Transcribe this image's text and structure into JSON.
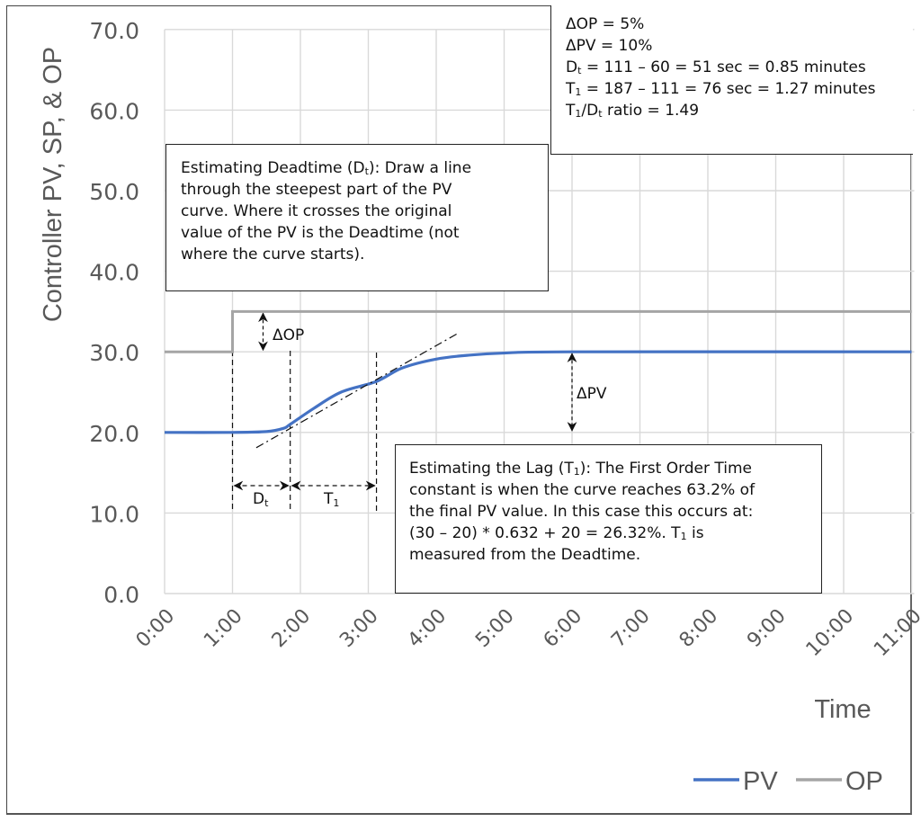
{
  "chart_data": {
    "type": "line",
    "title": "",
    "xlabel": "Time",
    "ylabel": "Controller PV, SP, & OP",
    "ylim": [
      0,
      70
    ],
    "yticks": [
      "0.0",
      "10.0",
      "20.0",
      "30.0",
      "40.0",
      "50.0",
      "60.0",
      "70.0"
    ],
    "xticks": [
      "0:00",
      "1:00",
      "2:00",
      "3:00",
      "4:00",
      "5:00",
      "6:00",
      "7:00",
      "8:00",
      "9:00",
      "10:00",
      "11:00"
    ],
    "xlim_minutes": [
      0,
      11
    ],
    "grid": true,
    "legend_position": "bottom-right",
    "series": [
      {
        "name": "PV",
        "color": "#4472C4",
        "points_minutes": [
          [
            0,
            20
          ],
          [
            1,
            20
          ],
          [
            1.5,
            20.1
          ],
          [
            1.75,
            20.5
          ],
          [
            1.85,
            21
          ],
          [
            2.2,
            23
          ],
          [
            2.6,
            25
          ],
          [
            3.12,
            26.32
          ],
          [
            3.5,
            28
          ],
          [
            4,
            29.1
          ],
          [
            4.5,
            29.6
          ],
          [
            5,
            29.85
          ],
          [
            6,
            30
          ],
          [
            11,
            30
          ]
        ]
      },
      {
        "name": "OP",
        "color": "#A5A5A5",
        "points_minutes": [
          [
            0,
            30
          ],
          [
            1,
            30
          ],
          [
            1,
            35
          ],
          [
            11,
            35
          ]
        ]
      }
    ],
    "annotations": [
      {
        "label": "ΔOP",
        "x_minutes": 1.45,
        "from": 30,
        "to": 35
      },
      {
        "label": "ΔPV",
        "x_minutes": 6,
        "from": 20,
        "to": 30
      },
      {
        "label": "Dt",
        "from_minutes": 1.0,
        "to_minutes": 1.85
      },
      {
        "label": "T1",
        "from_minutes": 1.85,
        "to_minutes": 3.12
      },
      {
        "label": "tangent line",
        "from": [
          1.35,
          18.1
        ],
        "to": [
          4.3,
          32.2
        ]
      }
    ]
  },
  "legend": {
    "pv": "PV",
    "op": "OP"
  },
  "labels": {
    "delta_op": "ΔOP",
    "delta_pv": "ΔPV",
    "dt_main": "D",
    "dt_sub": "t",
    "t1_main": "T",
    "t1_sub": "1"
  },
  "summary_box": {
    "line1": "ΔOP = 5%",
    "line2": "ΔPV = 10%",
    "line3_pre": "D",
    "line3_sub": "t",
    "line3_post": " = 111 – 60 = 51 sec = 0.85 minutes",
    "line4_pre": "T",
    "line4_sub": "1",
    "line4_post": " = 187 – 111 = 76 sec = 1.27 minutes",
    "line5_a": "T",
    "line5_a_sub": "1",
    "line5_b": "/D",
    "line5_b_sub": "t",
    "line5_c": " ratio = 1.49"
  },
  "deadtime_box": {
    "line1_pre": "Estimating Deadtime (D",
    "line1_sub": "t",
    "line1_post": "):  Draw a line",
    "line2": "through the steepest part of the PV",
    "line3": "curve.  Where it crosses the original",
    "line4": "value of the PV is the Deadtime (not",
    "line5": "where the curve starts)."
  },
  "lag_box": {
    "line1_pre": "Estimating the Lag (T",
    "line1_sub": "1",
    "line1_post": "):  The First Order Time",
    "line2": "constant is when the curve reaches 63.2% of",
    "line3": "the final PV value.  In this case this occurs at:",
    "line4_pre": "(30 – 20) * 0.632 + 20 = 26.32%.  T",
    "line4_sub": "1",
    "line4_post": " is",
    "line5": "measured from the Deadtime."
  }
}
